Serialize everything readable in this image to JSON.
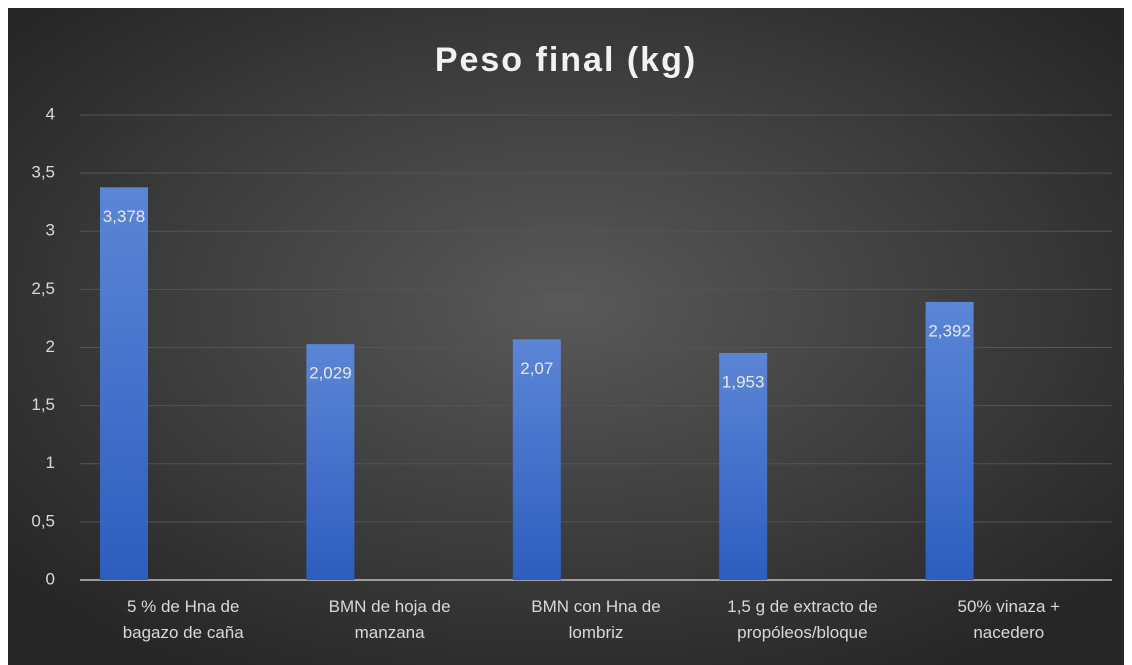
{
  "chart_data": {
    "type": "bar",
    "title": "Peso final (kg)",
    "categories": [
      "5 % de Hna de bagazo de caña",
      "BMN de hoja de manzana",
      "BMN con Hna de lombriz",
      "1,5 g de extracto de propóleos/bloque",
      "50% vinaza + nacedero"
    ],
    "values": [
      3.378,
      2.029,
      2.07,
      1.953,
      2.392
    ],
    "value_labels": [
      "3,378",
      "2,029",
      "2,07",
      "1,953",
      "2,392"
    ],
    "color": "#4472c4",
    "ylim": [
      0,
      4
    ],
    "yticks": [
      0,
      {
        "value": 0.5,
        "label": "0,5"
      },
      1,
      {
        "value": 1.5,
        "label": "1,5"
      },
      2,
      {
        "value": 2.5,
        "label": "2,5"
      },
      3,
      {
        "value": 3.5,
        "label": "3,5"
      },
      4
    ],
    "grid": true
  }
}
